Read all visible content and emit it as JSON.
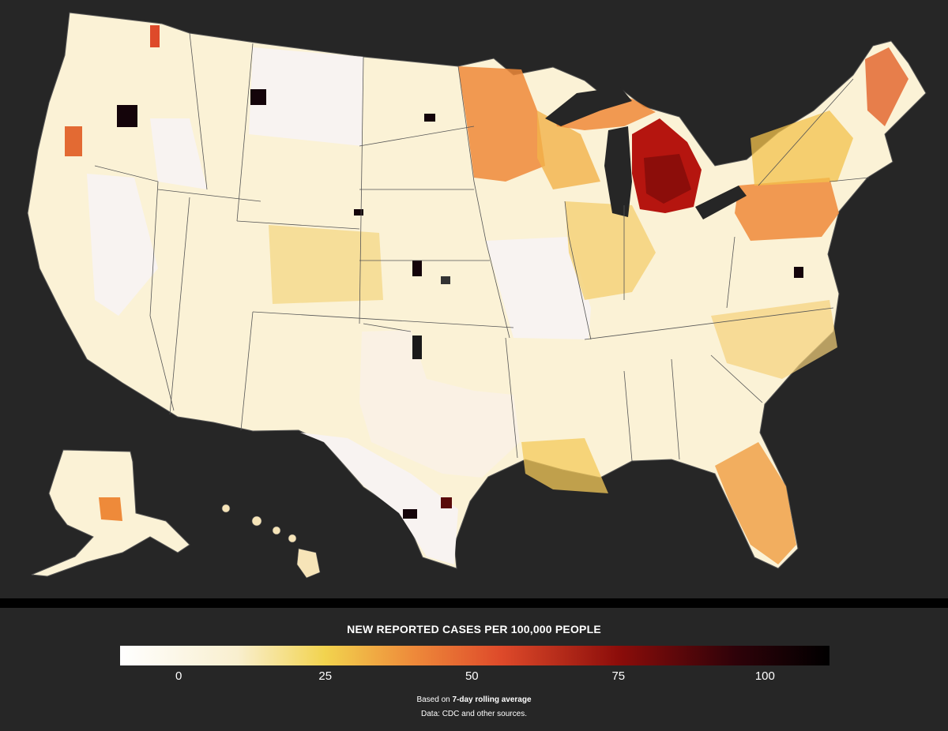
{
  "legend": {
    "title": "NEW REPORTED CASES PER 100,000 PEOPLE",
    "ticks": [
      "0",
      "25",
      "50",
      "75",
      "100"
    ],
    "tick_values": [
      0,
      25,
      50,
      75,
      100
    ],
    "scale_min": -10,
    "scale_max": 111,
    "gradient_stops": [
      {
        "value": -10,
        "color": "#ffffff"
      },
      {
        "value": 10,
        "color": "#f9efcf"
      },
      {
        "value": 25,
        "color": "#f2d34e"
      },
      {
        "value": 40,
        "color": "#ee8a3a"
      },
      {
        "value": 55,
        "color": "#de4a2a"
      },
      {
        "value": 75,
        "color": "#8c0d0a"
      },
      {
        "value": 95,
        "color": "#2e0209"
      },
      {
        "value": 111,
        "color": "#000000"
      }
    ],
    "note_prefix": "Based on ",
    "note_bold": "7-day rolling average",
    "note_source": "Data: CDC and other sources."
  },
  "map": {
    "background_color": "#262626",
    "border_color": "#555555",
    "base_fill": "#fbf2d6",
    "low_fill": "#f8f3f1",
    "hotspots": [
      {
        "region": "Michigan",
        "level": "very high"
      },
      {
        "region": "Minnesota-Wisconsin",
        "level": "high"
      },
      {
        "region": "Pennsylvania-New Jersey",
        "level": "high"
      },
      {
        "region": "Maine",
        "level": "high"
      },
      {
        "region": "Florida",
        "level": "moderate"
      }
    ]
  }
}
